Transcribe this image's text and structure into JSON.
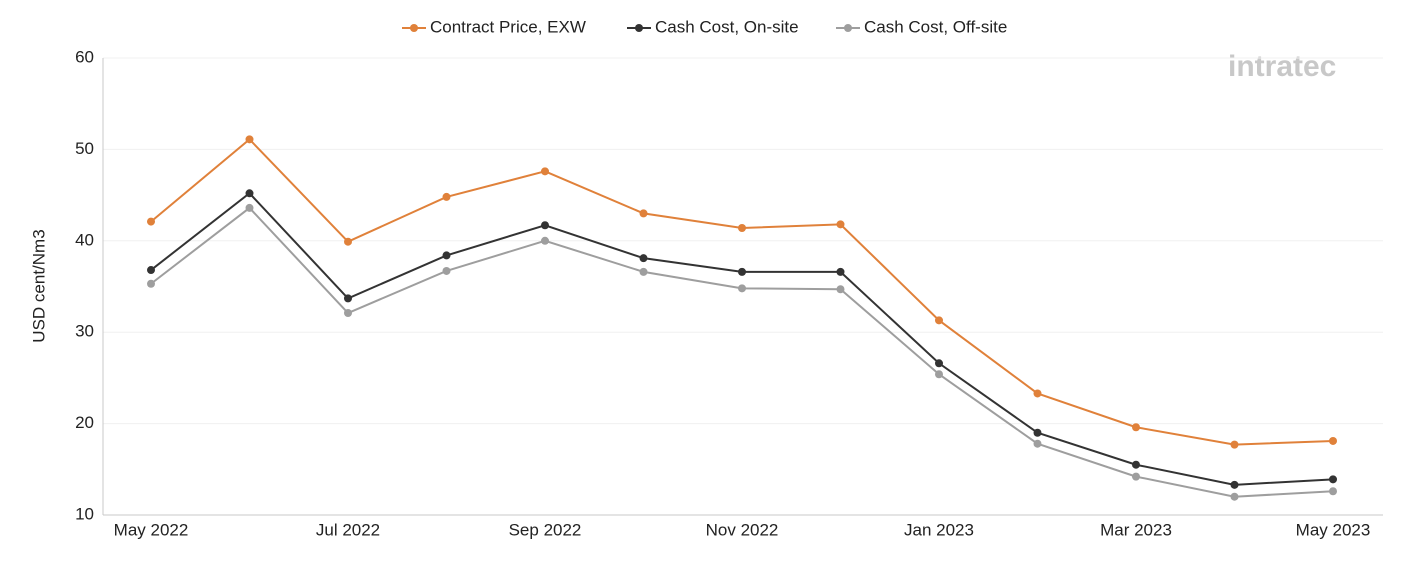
{
  "chart_data": {
    "type": "line",
    "y_label": "USD cent/Nm3",
    "watermark": "intratec",
    "categories": [
      "May 2022",
      null,
      "Jul 2022",
      null,
      "Sep 2022",
      null,
      "Nov 2022",
      null,
      "Jan 2023",
      null,
      "Mar 2023",
      null,
      "May 2023"
    ],
    "series": [
      {
        "name": "Contract Price, EXW",
        "color": "#e0813a",
        "values": [
          42.1,
          51.1,
          39.9,
          44.8,
          47.6,
          43.0,
          41.4,
          41.8,
          31.3,
          23.3,
          19.6,
          17.7,
          18.1
        ]
      },
      {
        "name": "Cash Cost, On-site",
        "color": "#333333",
        "values": [
          36.8,
          45.2,
          33.7,
          38.4,
          41.7,
          38.1,
          36.6,
          36.6,
          26.6,
          19.0,
          15.5,
          13.3,
          13.9
        ]
      },
      {
        "name": "Cash Cost, Off-site",
        "color": "#9e9e9e",
        "values": [
          35.3,
          43.6,
          32.1,
          36.7,
          40.0,
          36.6,
          34.8,
          34.7,
          25.4,
          17.8,
          14.2,
          12.0,
          12.6
        ]
      }
    ],
    "ylim": [
      10,
      60
    ],
    "yticks": [
      10,
      20,
      30,
      40,
      50,
      60
    ],
    "grid": true
  }
}
